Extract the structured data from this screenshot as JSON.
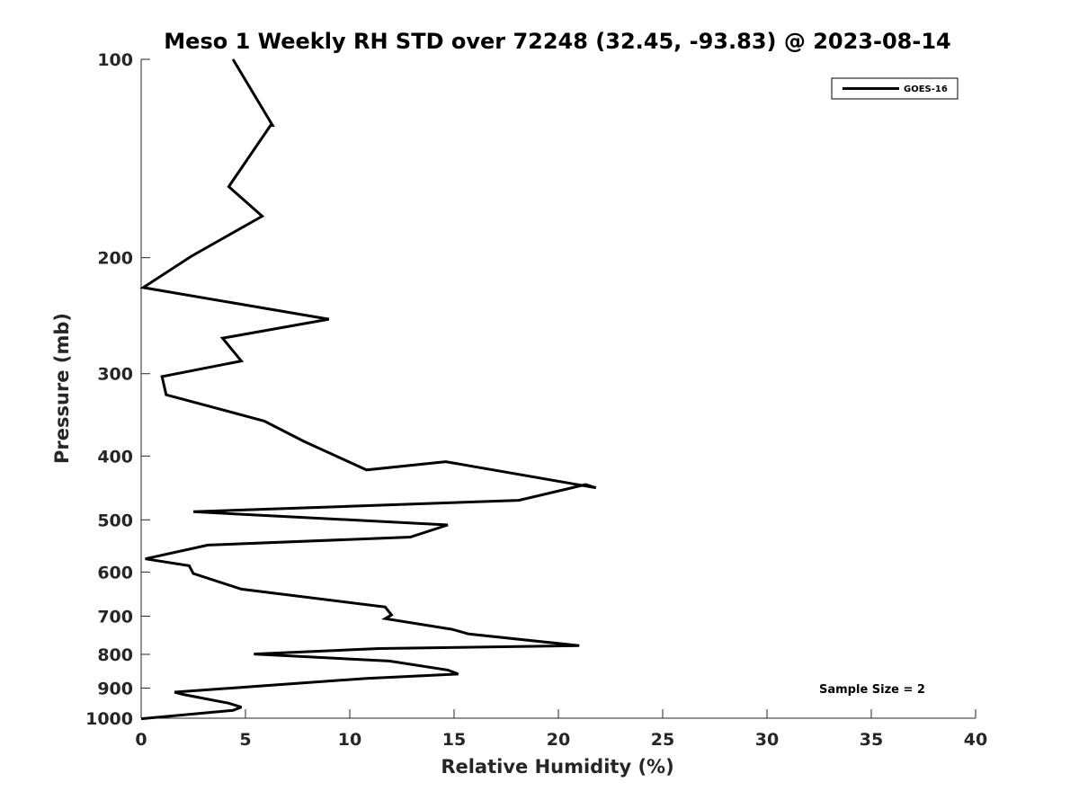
{
  "chart_data": {
    "type": "line",
    "title": "Meso 1 Weekly RH STD over 72248 (32.45, -93.83) @ 2023-08-14",
    "xlabel": "Relative Humidity (%)",
    "ylabel": "Pressure (mb)",
    "xlim": [
      0,
      40
    ],
    "ylim": [
      100,
      1000
    ],
    "y_scale": "log",
    "y_reversed": true,
    "grid": false,
    "legend_position": "top-right",
    "x_ticks": [
      0,
      5,
      10,
      15,
      20,
      25,
      30,
      35,
      40
    ],
    "y_ticks": [
      100,
      200,
      300,
      400,
      500,
      600,
      700,
      800,
      900,
      1000
    ],
    "annotation": "Sample Size = 2",
    "series": [
      {
        "name": "GOES-16",
        "color": "#000000",
        "x": [
          4.4,
          6.3,
          6.2,
          4.2,
          5.8,
          2.4,
          0.1,
          9.0,
          3.9,
          4.8,
          1.0,
          1.2,
          5.9,
          7.8,
          10.8,
          14.6,
          21.8,
          21.3,
          18.1,
          2.5,
          14.7,
          12.9,
          3.2,
          0.2,
          2.3,
          2.5,
          4.8,
          11.7,
          12.0,
          11.8,
          11.7,
          14.9,
          15.7,
          21.0,
          11.4,
          5.4,
          11.9,
          14.7,
          15.2,
          10.8,
          1.6,
          2.0,
          4.2,
          4.8,
          4.4,
          0.0
        ],
        "y": [
          100,
          126,
          126,
          156,
          173,
          199,
          222,
          248,
          265,
          287,
          303,
          323,
          354,
          380,
          420,
          408,
          447,
          442,
          467,
          486,
          509,
          531,
          546,
          573,
          587,
          603,
          637,
          678,
          697,
          703,
          706,
          733,
          745,
          776,
          784,
          799,
          819,
          845,
          857,
          870,
          913,
          920,
          949,
          962,
          973,
          1002
        ]
      }
    ]
  }
}
